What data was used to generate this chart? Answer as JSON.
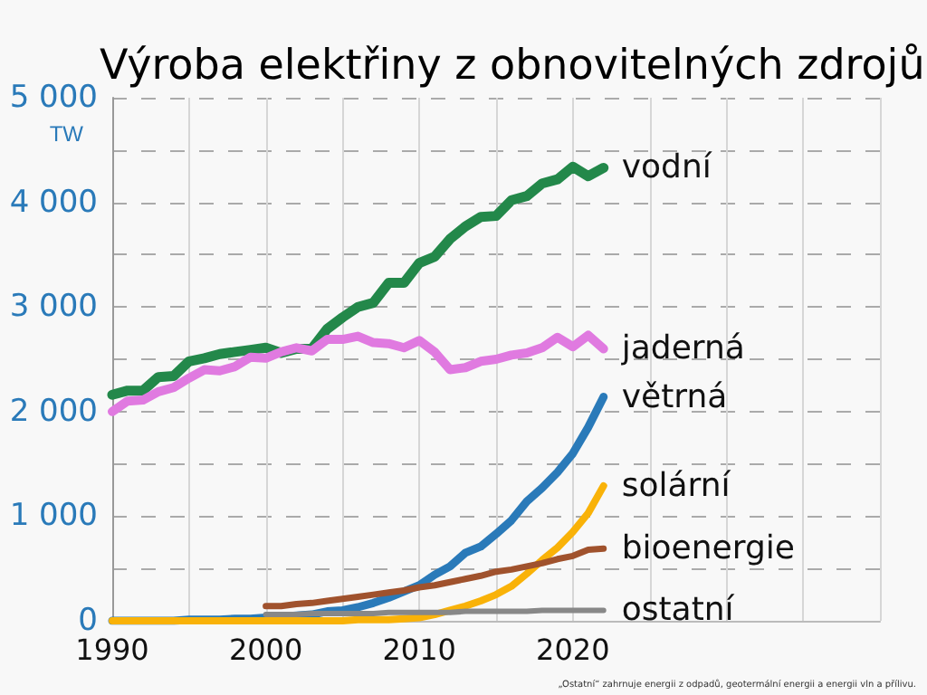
{
  "chart_data": {
    "type": "line",
    "title": "Výroba elektřiny z obnovitelných zdrojů",
    "ylabel": "TW",
    "annotations": [
      "„Ostatní“ zahrnuje energii z odpadů, geotermální energii a energii vln a přílivu."
    ],
    "x": [
      1990,
      1991,
      1992,
      1993,
      1994,
      1995,
      1996,
      1997,
      1998,
      1999,
      2000,
      2001,
      2002,
      2003,
      2004,
      2005,
      2006,
      2007,
      2008,
      2009,
      2010,
      2011,
      2012,
      2013,
      2014,
      2015,
      2016,
      2017,
      2018,
      2019,
      2020,
      2021,
      2022
    ],
    "xlim": [
      1990,
      2040
    ],
    "xticks": [
      1990,
      {
        "value": 1995,
        "label": null
      },
      2000,
      {
        "value": 2005,
        "label": null
      },
      2010,
      {
        "value": 2015,
        "label": null
      },
      2020,
      {
        "value": 2025,
        "label": null
      },
      {
        "value": 2030,
        "label": null
      },
      {
        "value": 2035,
        "label": null
      },
      {
        "value": 2040,
        "label": null
      }
    ],
    "ylim": [
      0,
      5000
    ],
    "yticks": [
      {
        "value": 0,
        "label": "0"
      },
      {
        "value": 500,
        "label": null
      },
      {
        "value": 1000,
        "label": "1 000"
      },
      {
        "value": 1500,
        "label": null
      },
      {
        "value": 2000,
        "label": "2 000"
      },
      {
        "value": 2500,
        "label": null
      },
      {
        "value": 3000,
        "label": "3 000"
      },
      {
        "value": 3500,
        "label": null
      },
      {
        "value": 4000,
        "label": "4 000"
      },
      {
        "value": 4500,
        "label": null
      },
      {
        "value": 5000,
        "label": "5 000"
      }
    ],
    "grid": true,
    "legend": false,
    "marker": "none",
    "line_style": "solid",
    "series": [
      {
        "name": "vodní",
        "color": "#23884a",
        "values": [
          2160,
          2200,
          2200,
          2330,
          2340,
          2480,
          2510,
          2550,
          2570,
          2590,
          2610,
          2560,
          2600,
          2600,
          2790,
          2900,
          3000,
          3040,
          3230,
          3230,
          3420,
          3480,
          3650,
          3770,
          3860,
          3870,
          4020,
          4060,
          4180,
          4220,
          4340,
          4250,
          4330
        ]
      },
      {
        "name": "jaderná",
        "color": "#e07ae0",
        "values": [
          2000,
          2100,
          2110,
          2190,
          2230,
          2320,
          2400,
          2390,
          2430,
          2520,
          2510,
          2570,
          2610,
          2580,
          2690,
          2690,
          2720,
          2660,
          2650,
          2610,
          2680,
          2570,
          2400,
          2420,
          2480,
          2500,
          2540,
          2560,
          2610,
          2710,
          2620,
          2730,
          2600
        ]
      },
      {
        "name": "větrná",
        "color": "#2a7ab9",
        "values": [
          0,
          0,
          0,
          0,
          0,
          10,
          10,
          10,
          20,
          20,
          30,
          40,
          50,
          60,
          90,
          100,
          130,
          170,
          220,
          280,
          340,
          440,
          520,
          650,
          710,
          830,
          960,
          1140,
          1270,
          1420,
          1600,
          1850,
          2140
        ]
      },
      {
        "name": "solární",
        "color": "#f9b208",
        "values": [
          0,
          0,
          0,
          0,
          0,
          0,
          0,
          0,
          0,
          0,
          0,
          0,
          0,
          0,
          0,
          0,
          10,
          10,
          10,
          20,
          30,
          60,
          100,
          140,
          190,
          250,
          330,
          450,
          580,
          700,
          850,
          1030,
          1290
        ]
      },
      {
        "name": "bioenergie",
        "color": "#a0522d",
        "values": [
          null,
          null,
          null,
          null,
          null,
          null,
          null,
          null,
          null,
          null,
          140,
          140,
          160,
          170,
          190,
          210,
          230,
          250,
          270,
          290,
          320,
          340,
          370,
          400,
          430,
          470,
          490,
          520,
          550,
          590,
          620,
          680,
          690
        ]
      },
      {
        "name": "ostatní",
        "color": "#888888",
        "values": [
          null,
          null,
          null,
          null,
          null,
          null,
          null,
          null,
          null,
          null,
          60,
          60,
          60,
          70,
          70,
          70,
          70,
          70,
          80,
          80,
          80,
          80,
          80,
          90,
          90,
          90,
          90,
          90,
          100,
          100,
          100,
          100,
          100
        ]
      }
    ]
  }
}
